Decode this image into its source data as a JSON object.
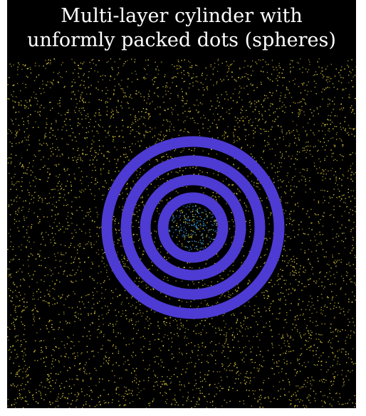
{
  "figure": {
    "title_lines": [
      "Multi-layer cylinder with",
      "unformly packed dots (spheres)"
    ]
  },
  "colors": {
    "background": "#000000",
    "frame": "#ffffff",
    "title_text": "#ffffff",
    "outer_dots": "#e6d23a",
    "inner_dots": "#3fa6e8",
    "rings": "#4d3bd3"
  },
  "scene": {
    "ring_count": 4,
    "outer_dot_count": 5200,
    "inner_dot_count": 160
  }
}
